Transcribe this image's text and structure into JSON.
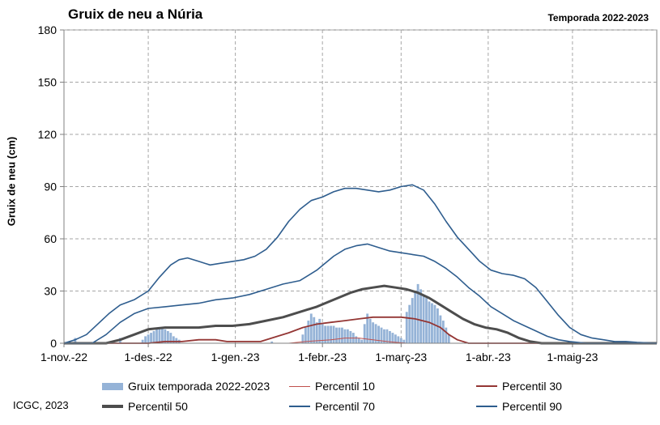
{
  "header": {
    "title": "Gruix de neu a Núria",
    "season": "Temporada 2022-2023"
  },
  "footer": {
    "credit": "ICGC, 2023"
  },
  "colors": {
    "bars": "#95b3d7",
    "p10": "#c0504d",
    "p30": "#943634",
    "p50": "#4d4d4d",
    "p70": "#2e5d8e",
    "p90": "#2e5d8e",
    "grid": "#a6a6a6"
  },
  "legend": {
    "bars": "Gruix temporada 2022-2023",
    "p10": "Percentil 10",
    "p30": "Percentil 30",
    "p50": "Percentil 50",
    "p70": "Percentil 70",
    "p90": "Percentil 90"
  },
  "chart_data": {
    "type": "bar",
    "title": "Gruix de neu a Núria",
    "ylabel": "Gruix de neu (cm)",
    "xlabel": "",
    "x_range_days": [
      0,
      211
    ],
    "ylim": [
      0,
      180
    ],
    "yticks": [
      "0",
      "30",
      "60",
      "90",
      "120",
      "150",
      "180"
    ],
    "yticks_values": [
      0,
      30,
      60,
      90,
      120,
      150,
      180
    ],
    "xticks": [
      {
        "label": "1-nov.-22",
        "day": 0
      },
      {
        "label": "1-des.-22",
        "day": 30
      },
      {
        "label": "1-gen.-23",
        "day": 61
      },
      {
        "label": "1-febr.-23",
        "day": 92
      },
      {
        "label": "1-març-23",
        "day": 120
      },
      {
        "label": "1-abr.-23",
        "day": 151
      },
      {
        "label": "1-maig-23",
        "day": 181
      }
    ],
    "grid": true,
    "legend_position": "bottom",
    "series": [
      {
        "name": "Gruix temporada 2022-2023",
        "kind": "bars",
        "points": [
          [
            4,
            3
          ],
          [
            20,
            3
          ],
          [
            28,
            2
          ],
          [
            29,
            4
          ],
          [
            30,
            5
          ],
          [
            31,
            6
          ],
          [
            32,
            7
          ],
          [
            33,
            8
          ],
          [
            34,
            9
          ],
          [
            35,
            9
          ],
          [
            36,
            8
          ],
          [
            37,
            7
          ],
          [
            38,
            6
          ],
          [
            39,
            4
          ],
          [
            40,
            3
          ],
          [
            41,
            2
          ],
          [
            74,
            1
          ],
          [
            85,
            5
          ],
          [
            86,
            9
          ],
          [
            87,
            13
          ],
          [
            88,
            17
          ],
          [
            89,
            15
          ],
          [
            90,
            12
          ],
          [
            91,
            14
          ],
          [
            92,
            11
          ],
          [
            93,
            10
          ],
          [
            94,
            10
          ],
          [
            95,
            10
          ],
          [
            96,
            10
          ],
          [
            97,
            9
          ],
          [
            98,
            9
          ],
          [
            99,
            9
          ],
          [
            100,
            8
          ],
          [
            101,
            8
          ],
          [
            102,
            7
          ],
          [
            103,
            6
          ],
          [
            104,
            4
          ],
          [
            105,
            3
          ],
          [
            106,
            2
          ],
          [
            107,
            11
          ],
          [
            108,
            17
          ],
          [
            109,
            14
          ],
          [
            110,
            12
          ],
          [
            111,
            11
          ],
          [
            112,
            10
          ],
          [
            113,
            9
          ],
          [
            114,
            8
          ],
          [
            115,
            8
          ],
          [
            116,
            7
          ],
          [
            117,
            6
          ],
          [
            118,
            5
          ],
          [
            119,
            4
          ],
          [
            120,
            3
          ],
          [
            121,
            2
          ],
          [
            122,
            18
          ],
          [
            123,
            22
          ],
          [
            124,
            26
          ],
          [
            125,
            30
          ],
          [
            126,
            34
          ],
          [
            127,
            31
          ],
          [
            128,
            28
          ],
          [
            129,
            26
          ],
          [
            130,
            24
          ],
          [
            131,
            23
          ],
          [
            132,
            22
          ],
          [
            133,
            20
          ],
          [
            134,
            16
          ],
          [
            135,
            13
          ],
          [
            136,
            9
          ],
          [
            137,
            5
          ]
        ]
      },
      {
        "name": "Percentil 10",
        "kind": "line",
        "points": [
          [
            0,
            0
          ],
          [
            80,
            0
          ],
          [
            86,
            1
          ],
          [
            95,
            2
          ],
          [
            100,
            3
          ],
          [
            105,
            3
          ],
          [
            110,
            2
          ],
          [
            115,
            1
          ],
          [
            118,
            0.5
          ],
          [
            122,
            0
          ],
          [
            211,
            0
          ]
        ]
      },
      {
        "name": "Percentil 30",
        "kind": "line",
        "points": [
          [
            0,
            0
          ],
          [
            30,
            0
          ],
          [
            36,
            1
          ],
          [
            42,
            1
          ],
          [
            48,
            2
          ],
          [
            54,
            2
          ],
          [
            58,
            1
          ],
          [
            64,
            1
          ],
          [
            70,
            1
          ],
          [
            76,
            4
          ],
          [
            80,
            6
          ],
          [
            85,
            9
          ],
          [
            90,
            11
          ],
          [
            95,
            12
          ],
          [
            100,
            13
          ],
          [
            105,
            14
          ],
          [
            110,
            15
          ],
          [
            115,
            15
          ],
          [
            120,
            15
          ],
          [
            125,
            14
          ],
          [
            130,
            12
          ],
          [
            134,
            9
          ],
          [
            137,
            5
          ],
          [
            140,
            2
          ],
          [
            144,
            0
          ],
          [
            211,
            0
          ]
        ]
      },
      {
        "name": "Percentil 50",
        "kind": "line",
        "points": [
          [
            0,
            0
          ],
          [
            15,
            0
          ],
          [
            20,
            2
          ],
          [
            25,
            5
          ],
          [
            30,
            8
          ],
          [
            36,
            9
          ],
          [
            42,
            9
          ],
          [
            48,
            9
          ],
          [
            54,
            10
          ],
          [
            60,
            10
          ],
          [
            66,
            11
          ],
          [
            72,
            13
          ],
          [
            78,
            15
          ],
          [
            84,
            18
          ],
          [
            90,
            21
          ],
          [
            96,
            25
          ],
          [
            102,
            29
          ],
          [
            106,
            31
          ],
          [
            110,
            32
          ],
          [
            114,
            33
          ],
          [
            118,
            32
          ],
          [
            122,
            31
          ],
          [
            126,
            29
          ],
          [
            130,
            26
          ],
          [
            134,
            22
          ],
          [
            138,
            18
          ],
          [
            142,
            14
          ],
          [
            146,
            11
          ],
          [
            150,
            9
          ],
          [
            154,
            8
          ],
          [
            158,
            6
          ],
          [
            162,
            3
          ],
          [
            166,
            1
          ],
          [
            170,
            0
          ],
          [
            211,
            0
          ]
        ]
      },
      {
        "name": "Percentil 70",
        "kind": "line",
        "points": [
          [
            0,
            0
          ],
          [
            10,
            0
          ],
          [
            15,
            5
          ],
          [
            20,
            12
          ],
          [
            25,
            17
          ],
          [
            30,
            20
          ],
          [
            36,
            21
          ],
          [
            42,
            22
          ],
          [
            48,
            23
          ],
          [
            54,
            25
          ],
          [
            60,
            26
          ],
          [
            66,
            28
          ],
          [
            72,
            31
          ],
          [
            78,
            34
          ],
          [
            84,
            36
          ],
          [
            90,
            42
          ],
          [
            96,
            50
          ],
          [
            100,
            54
          ],
          [
            104,
            56
          ],
          [
            108,
            57
          ],
          [
            112,
            55
          ],
          [
            116,
            53
          ],
          [
            120,
            52
          ],
          [
            124,
            51
          ],
          [
            128,
            50
          ],
          [
            132,
            47
          ],
          [
            136,
            43
          ],
          [
            140,
            38
          ],
          [
            144,
            32
          ],
          [
            148,
            27
          ],
          [
            152,
            21
          ],
          [
            156,
            17
          ],
          [
            160,
            13
          ],
          [
            164,
            10
          ],
          [
            168,
            7
          ],
          [
            172,
            4
          ],
          [
            176,
            2
          ],
          [
            180,
            1
          ],
          [
            186,
            0
          ],
          [
            211,
            0
          ]
        ]
      },
      {
        "name": "Percentil 90",
        "kind": "line",
        "points": [
          [
            0,
            0
          ],
          [
            4,
            2
          ],
          [
            8,
            5
          ],
          [
            12,
            11
          ],
          [
            16,
            17
          ],
          [
            20,
            22
          ],
          [
            25,
            25
          ],
          [
            30,
            30
          ],
          [
            34,
            38
          ],
          [
            38,
            45
          ],
          [
            41,
            48
          ],
          [
            44,
            49
          ],
          [
            48,
            47
          ],
          [
            52,
            45
          ],
          [
            56,
            46
          ],
          [
            60,
            47
          ],
          [
            64,
            48
          ],
          [
            68,
            50
          ],
          [
            72,
            54
          ],
          [
            76,
            61
          ],
          [
            80,
            70
          ],
          [
            84,
            77
          ],
          [
            88,
            82
          ],
          [
            92,
            84
          ],
          [
            96,
            87
          ],
          [
            100,
            89
          ],
          [
            104,
            89
          ],
          [
            108,
            88
          ],
          [
            112,
            87
          ],
          [
            116,
            88
          ],
          [
            120,
            90
          ],
          [
            124,
            91
          ],
          [
            128,
            88
          ],
          [
            132,
            80
          ],
          [
            136,
            70
          ],
          [
            140,
            61
          ],
          [
            144,
            54
          ],
          [
            148,
            47
          ],
          [
            152,
            42
          ],
          [
            156,
            40
          ],
          [
            160,
            39
          ],
          [
            164,
            37
          ],
          [
            168,
            32
          ],
          [
            172,
            24
          ],
          [
            176,
            16
          ],
          [
            180,
            9
          ],
          [
            184,
            5
          ],
          [
            188,
            3
          ],
          [
            192,
            2
          ],
          [
            196,
            1
          ],
          [
            200,
            1
          ],
          [
            204,
            0.5
          ],
          [
            211,
            0
          ]
        ]
      }
    ]
  }
}
